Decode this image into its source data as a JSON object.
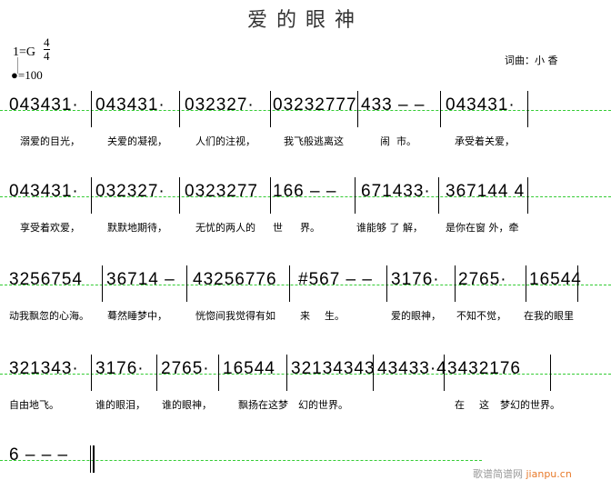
{
  "title": "爱的眼神",
  "key": "1=G",
  "time_signature": {
    "top": "4",
    "bottom": "4"
  },
  "tempo": "=100",
  "credit": "词曲：小 香",
  "watermark": {
    "text": "歌谱简谱网",
    "site": "jianpu.cn"
  },
  "rows": [
    {
      "measures": [
        "043431·",
        "043431·",
        "032327·",
        "03232777",
        "433 – –",
        "043431·"
      ],
      "lyrics": [
        "溺爱的目光，",
        "关爱的凝视，",
        "人们的注视，",
        "我飞般逃离这",
        "闹",
        "市。",
        "承受着关爱，"
      ]
    },
    {
      "measures": [
        "043431·",
        "032327·",
        "0323277",
        "166 – –",
        "671433·",
        "367144 4"
      ],
      "lyrics": [
        "享受着欢爱，",
        "默默地期待，",
        "无忧的两人的",
        "世",
        "界。",
        "谁能够 了 解，",
        "是你在窗  外，牵"
      ]
    },
    {
      "measures": [
        "3256754",
        "36714 –",
        "43256776",
        "#567 – –",
        "3176·",
        "2765·",
        "16544"
      ],
      "lyrics": [
        "动我飘忽的心海。",
        "蓦然睡梦中，",
        "恍惚间我觉得有如",
        "来",
        "生。",
        "爱的眼神，",
        "不知不觉，",
        "在我的眼里"
      ]
    },
    {
      "measures": [
        "321343·",
        "3176·",
        "2765·",
        "16544",
        "32134343",
        "43433·4",
        "3432176"
      ],
      "lyrics": [
        "自由地飞。",
        "谁的眼泪，",
        "谁的眼神，",
        "飘扬在这梦",
        "幻的世界。",
        "在",
        "这",
        "梦幻的世界。"
      ]
    },
    {
      "measures": [
        "6 – – –"
      ],
      "lyrics": []
    }
  ]
}
